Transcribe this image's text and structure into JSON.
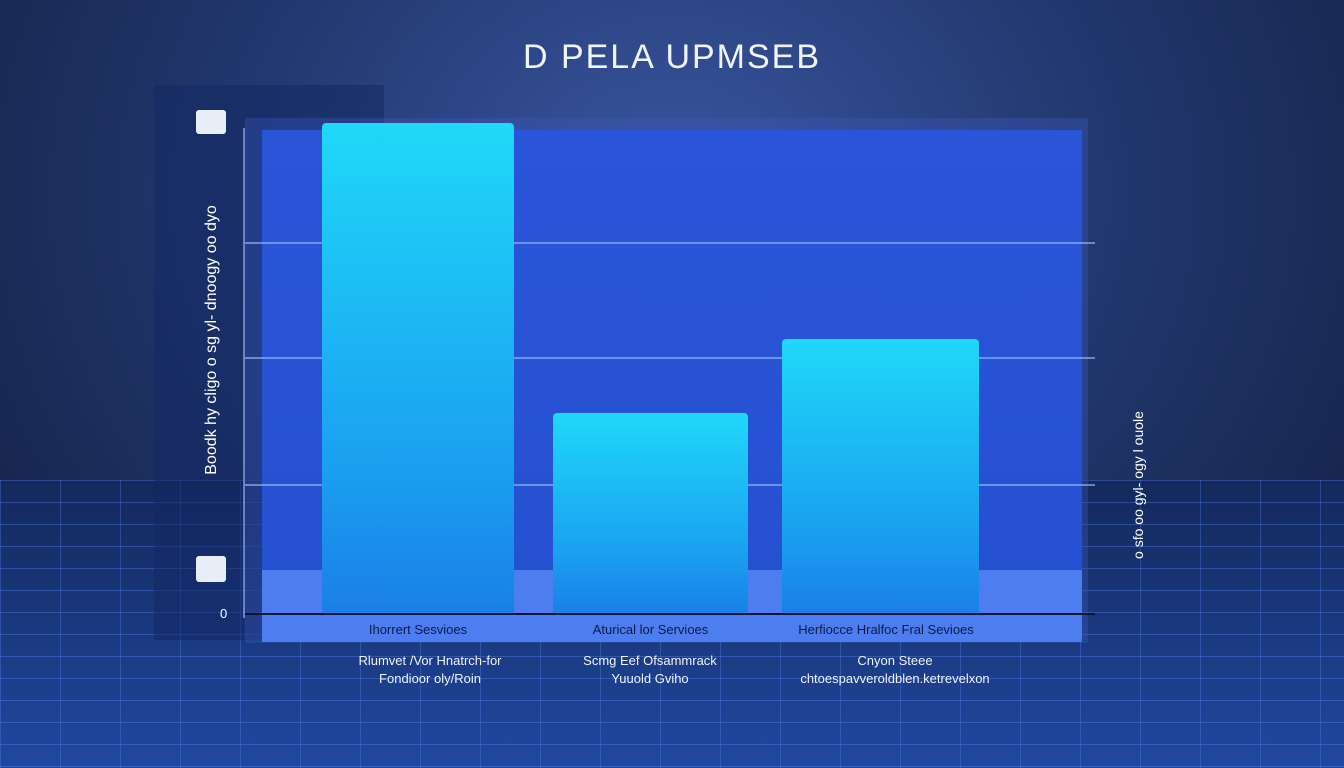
{
  "chart_data": {
    "type": "bar",
    "title": "D PELA UPMSEB",
    "ylabel": "Boodk hy cligo o sg yl- dnoogy oo dyo",
    "right_label": "o sfo oo gyl- ogy l ouole",
    "y_tick_labels": [
      "0"
    ],
    "categories": [
      "Ihorrert Sesvioes",
      "Aturical lor Servioes",
      "Herfiocce Hralfoc Fral Sevioes"
    ],
    "sublabels": [
      [
        "Rlumvet /Vor Hnatrch-for",
        "Fondioor oly/Roin"
      ],
      [
        "Scmg Eef Ofsammrack",
        "Yuuold Gviho"
      ],
      [
        "Cnyon Steee",
        "chtoespavveroldblen.ketrevelxon"
      ]
    ],
    "values": [
      100,
      41,
      56
    ],
    "ylim": [
      0,
      100
    ],
    "grid": true,
    "colors": {
      "bar": "#20d0f6",
      "plot": "#2a55d8"
    }
  }
}
